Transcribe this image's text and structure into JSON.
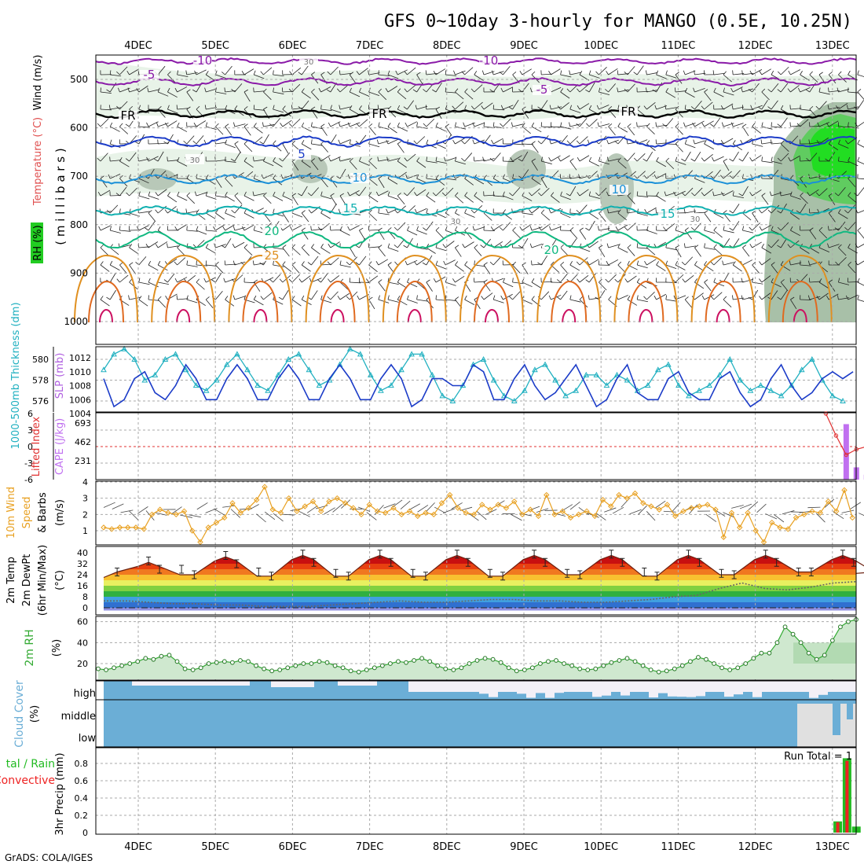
{
  "title": "GFS 0~10day 3-hourly for MANGO (0.5E, 10.25N)",
  "footer": "GrADS: COLA/IGES",
  "dates": [
    "4DEC",
    "5DEC",
    "6DEC",
    "7DEC",
    "8DEC",
    "9DEC",
    "10DEC",
    "11DEC",
    "12DEC",
    "13DEC"
  ],
  "colors": {
    "temp_label": "#e05050",
    "rh_green": "#22cc22",
    "wind_orange": "#e8a020",
    "thickness_cyan": "#20b0c0",
    "slp_purple": "#b060e0",
    "cape_purple": "#c070f0",
    "lifted_red": "#e03030",
    "rh2m_green": "#33aa33",
    "cloud_blue": "#6baed6",
    "precip_green": "#22bb22",
    "precip_red": "#ee2222"
  },
  "panels": {
    "upper": {
      "ylabel_rh": "RH (%)",
      "ylabel_temp": "Temperature (°C)",
      "ylabel_wind": "Wind (m/s)",
      "ylabel_mb": "( m i l l i b a r s )",
      "yticks": [
        "500",
        "600",
        "700",
        "800",
        "900",
        "1000"
      ]
    },
    "thickness": {
      "ylabel_left": "1000-500mb Thickness (dm)",
      "ylabel_right": "SLP (mb)",
      "yticks_left": [
        "580",
        "578",
        "576"
      ],
      "yticks_right": [
        "1012",
        "1010",
        "1008",
        "1006",
        "1004"
      ]
    },
    "cape": {
      "ylabel_left": "Lifted Index",
      "ylabel_right": "CAPE (J/kg)",
      "yticks_left": [
        "-6",
        "-3",
        "0",
        "3",
        "6"
      ],
      "yticks_right": [
        "693",
        "462",
        "231"
      ]
    },
    "wind10": {
      "ylabel_a": "10m Wind",
      "ylabel_b": "Speed",
      "ylabel_c": "& Barbs",
      "ylabel_d": "(m/s)",
      "yticks": [
        "4",
        "3",
        "2",
        "1"
      ]
    },
    "temp2m": {
      "ylabel_a": "2m Temp",
      "ylabel_b": "2m DewPt",
      "ylabel_c": "(6hr Min/Max)",
      "ylabel_d": "(°C)",
      "yticks": [
        "40",
        "32",
        "24",
        "16",
        "8",
        "0"
      ]
    },
    "rh2m": {
      "ylabel": "2m RH",
      "unit": "(%)",
      "yticks": [
        "60",
        "40",
        "20"
      ]
    },
    "cloud": {
      "ylabel": "Cloud Cover",
      "unit": "(%)",
      "levels": [
        "high",
        "middle",
        "low"
      ]
    },
    "precip": {
      "ylabel_a": "tal / Rain",
      "ylabel_b": "Convective",
      "ylabel_c": "3hr Precip (mm)",
      "yticks": [
        "0.8",
        "0.6",
        "0.4",
        "0.2",
        "0"
      ],
      "run_total": "Run Total = 1"
    }
  },
  "contour_labels": [
    {
      "text": "-10",
      "color": "#8a1aa8"
    },
    {
      "text": "-10",
      "color": "#8a1aa8"
    },
    {
      "text": "-5",
      "color": "#8a1aa8"
    },
    {
      "text": "-5",
      "color": "#8a1aa8"
    },
    {
      "text": "FR",
      "color": "#000000"
    },
    {
      "text": "FR",
      "color": "#000000"
    },
    {
      "text": "FR",
      "color": "#000000"
    },
    {
      "text": "5",
      "color": "#1c3cc8"
    },
    {
      "text": "10",
      "color": "#1a90d8"
    },
    {
      "text": "10",
      "color": "#1a90d8"
    },
    {
      "text": "15",
      "color": "#10b0b0"
    },
    {
      "text": "15",
      "color": "#10b0b0"
    },
    {
      "text": "20",
      "color": "#10b880"
    },
    {
      "text": "20",
      "color": "#10b880"
    },
    {
      "text": "25",
      "color": "#e09020"
    },
    {
      "text": "30",
      "color": "#777777"
    },
    {
      "text": "30",
      "color": "#777777"
    },
    {
      "text": "30",
      "color": "#777777"
    },
    {
      "text": "30",
      "color": "#777777"
    }
  ],
  "chart_data": [
    {
      "type": "line",
      "title": "1000-500mb Thickness / SLP",
      "series": [
        {
          "name": "1000-500mb Thickness (dm)",
          "axis": "left",
          "ylim": [
            575.5,
            581.5
          ],
          "values": [
            579,
            580.5,
            581,
            580,
            578,
            578.5,
            580,
            580.5,
            579,
            577.5,
            577,
            578,
            579.5,
            580.5,
            579,
            577.5,
            577,
            578.5,
            580,
            580.5,
            579,
            577.5,
            578,
            579.5,
            581,
            580.5,
            578.5,
            577,
            577.5,
            579,
            580.5,
            580.5,
            578.5,
            576.5,
            576,
            577.5,
            579.5,
            580,
            578,
            576.5,
            576,
            577,
            579,
            579.5,
            578,
            576.5,
            577,
            578.5,
            578.5,
            577.5,
            578.5,
            578,
            577,
            577.5,
            579,
            579.5,
            577.5,
            576.5,
            577,
            577.5,
            578.5,
            580,
            578,
            577,
            577.5,
            577,
            576.5,
            577.5,
            579,
            580,
            578,
            576.5,
            576
          ]
        },
        {
          "name": "SLP (mb)",
          "axis": "right",
          "ylim": [
            1004,
            1013
          ],
          "values": [
            1009,
            1005,
            1006,
            1009,
            1010,
            1007,
            1006,
            1008,
            1011,
            1009,
            1006,
            1006,
            1009,
            1011,
            1009,
            1006,
            1006,
            1009,
            1011,
            1009,
            1006,
            1006,
            1009,
            1011,
            1009,
            1006,
            1006,
            1009,
            1011,
            1009,
            1005,
            1006,
            1009,
            1009,
            1008,
            1008,
            1011,
            1010,
            1006,
            1006,
            1009,
            1011,
            1008,
            1006,
            1007,
            1009,
            1011,
            1008,
            1005,
            1006,
            1009,
            1011,
            1007,
            1006,
            1006,
            1009,
            1010,
            1007,
            1006,
            1006,
            1009,
            1010,
            1007,
            1005,
            1006,
            1009,
            1011,
            1008,
            1006,
            1007,
            1009,
            1010,
            1009,
            1010
          ]
        }
      ]
    },
    {
      "type": "bar",
      "title": "CAPE / Lifted Index",
      "cape": {
        "name": "CAPE (J/kg)",
        "ylim": [
          0,
          800
        ],
        "points": [
          [
            71,
            0
          ],
          [
            72,
            0
          ],
          [
            73,
            680
          ],
          [
            74,
            150
          ],
          [
            75,
            60
          ],
          [
            76,
            0
          ],
          [
            77,
            0
          ],
          [
            78,
            10
          ],
          [
            79,
            450
          ],
          [
            80,
            150
          ],
          [
            81,
            500
          ]
        ]
      },
      "lifted_index": {
        "name": "Lifted Index",
        "ylim": [
          6,
          -6
        ],
        "points": [
          [
            71,
            6
          ],
          [
            72,
            2
          ],
          [
            73,
            -1.5
          ],
          [
            74,
            -0.5
          ],
          [
            75,
            0
          ],
          [
            76,
            1
          ],
          [
            77,
            1.5
          ],
          [
            78,
            1.2
          ],
          [
            79,
            0
          ],
          [
            80,
            -0.5
          ],
          [
            81,
            -1.5
          ]
        ]
      }
    },
    {
      "type": "line",
      "title": "10m Wind Speed",
      "ylim": [
        0,
        4
      ],
      "values": [
        1.2,
        1.1,
        1.2,
        1.2,
        1.2,
        1.1,
        2.0,
        2.3,
        2.1,
        2.0,
        2.2,
        1.0,
        0.3,
        1.2,
        1.5,
        1.8,
        2.7,
        2.1,
        2.4,
        2.9,
        3.7,
        2.3,
        2.1,
        3.0,
        2.2,
        2.5,
        2.8,
        2.2,
        2.8,
        3.0,
        2.7,
        2.4,
        2.0,
        2.6,
        2.2,
        2.1,
        2.4,
        2.0,
        2.2,
        1.9,
        2.1,
        2.0,
        2.7,
        3.2,
        2.4,
        2.1,
        2.0,
        2.6,
        2.3,
        2.6,
        2.4,
        2.8,
        2.0,
        2.3,
        1.9,
        3.2,
        2.0,
        2.2,
        1.8,
        2.0,
        2.2,
        1.9,
        2.9,
        2.5,
        3.2,
        3.0,
        3.3,
        2.7,
        2.5,
        2.3,
        2.6,
        1.9,
        2.2,
        2.4,
        2.5,
        2.6,
        2.3,
        0.6,
        2.1,
        1.2,
        2.1,
        1.0,
        0.3,
        1.5,
        1.2,
        1.1,
        1.8,
        2.0,
        2.2,
        2.1,
        2.8,
        2.2,
        3.5,
        1.8
      ]
    },
    {
      "type": "area",
      "title": "2m Temp / DewPt",
      "ylim": [
        -2,
        40
      ],
      "max_temps": [
        33,
        37,
        38,
        38,
        38,
        38,
        38,
        38,
        38,
        38
      ],
      "min_temps": [
        26,
        24,
        23,
        23,
        23,
        23,
        24,
        23,
        24,
        26
      ],
      "dewpoint": [
        5,
        5,
        4,
        3,
        3,
        2,
        2,
        1,
        1,
        1,
        2,
        3,
        4,
        5,
        4,
        4,
        5,
        6,
        6,
        5,
        5,
        4,
        4,
        5,
        6,
        8,
        9,
        14,
        18,
        14,
        13,
        15,
        18,
        19
      ]
    },
    {
      "type": "area",
      "title": "2m RH",
      "ylim": [
        5,
        62
      ],
      "values": [
        15,
        14,
        16,
        18,
        20,
        22,
        25,
        24,
        27,
        28,
        22,
        15,
        14,
        16,
        20,
        21,
        22,
        21,
        23,
        22,
        18,
        15,
        13,
        14,
        16,
        18,
        20,
        20,
        22,
        21,
        18,
        16,
        13,
        12,
        14,
        16,
        18,
        20,
        22,
        21,
        23,
        25,
        22,
        18,
        15,
        14,
        16,
        20,
        23,
        25,
        24,
        21,
        16,
        13,
        14,
        16,
        20,
        22,
        23,
        20,
        18,
        15,
        14,
        15,
        18,
        21,
        23,
        25,
        22,
        18,
        14,
        12,
        13,
        15,
        18,
        22,
        26,
        24,
        20,
        16,
        14,
        16,
        20,
        25,
        30,
        30,
        40,
        55,
        48,
        40,
        30,
        24,
        28,
        42,
        55,
        60,
        62
      ]
    },
    {
      "type": "heatmap",
      "title": "Cloud Cover",
      "rows": [
        "high",
        "middle",
        "low"
      ]
    },
    {
      "type": "bar",
      "title": "3hr Precip",
      "ylim": [
        0,
        0.9
      ],
      "series": [
        {
          "name": "Total",
          "points": [
            [
              79,
              0.13
            ],
            [
              80,
              0.86
            ],
            [
              81,
              0.07
            ]
          ]
        },
        {
          "name": "Convective",
          "points": [
            [
              79,
              0.12
            ],
            [
              80,
              0.83
            ]
          ]
        }
      ]
    }
  ]
}
